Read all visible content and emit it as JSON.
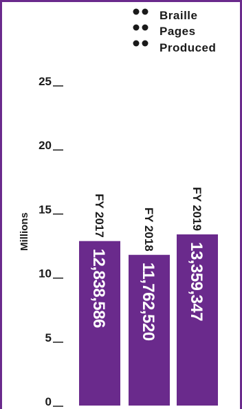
{
  "colors": {
    "bar": "#6a2a8c",
    "frame": "#6a2a8c",
    "text": "#1a1a1a",
    "value_text": "#ffffff"
  },
  "legend": {
    "icon": "braille-cell-icon",
    "lines": [
      "Braille",
      "Pages",
      "Produced"
    ]
  },
  "chart_data": {
    "type": "bar",
    "orientation": "vertical",
    "categories": [
      "FY 2017",
      "FY 2018",
      "FY 2019"
    ],
    "values": [
      12838586,
      11762520,
      13359347
    ],
    "value_labels": [
      "12,838,586",
      "11,762,520",
      "13,359,347"
    ],
    "ylabel": "Millions",
    "yunit_divisor": 1000000,
    "ylim": [
      0,
      25
    ],
    "yticks": [
      0,
      5,
      10,
      15,
      20,
      25
    ],
    "ytick_labels": [
      "0",
      "5",
      "10",
      "15",
      "20",
      "25"
    ],
    "grid": false,
    "legend_position": "top-right"
  }
}
